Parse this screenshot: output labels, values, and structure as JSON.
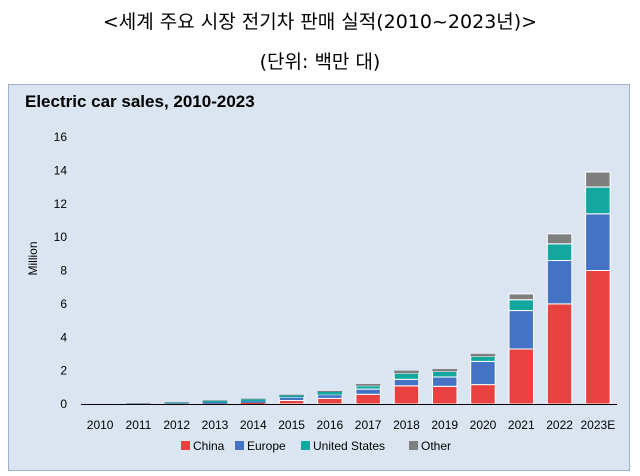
{
  "heading": {
    "title": "<세계 주요 시장 전기차 판매 실적(2010~2023년)>",
    "unit": "(단위: 백만 대)"
  },
  "colors": {
    "China": "#e8413f",
    "Europe": "#4472c4",
    "United States": "#12a8a0",
    "Other": "#7f7f7f",
    "background": "#dbe5f1"
  },
  "chart_data": {
    "type": "bar",
    "stacked": true,
    "title": "Electric car sales, 2010-2023",
    "xlabel": "",
    "ylabel": "Million",
    "ylim": [
      0,
      16
    ],
    "yticks": [
      0,
      2,
      4,
      6,
      8,
      10,
      12,
      14,
      16
    ],
    "grid": false,
    "legend_position": "bottom",
    "categories": [
      "2010",
      "2011",
      "2012",
      "2013",
      "2014",
      "2015",
      "2016",
      "2017",
      "2018",
      "2019",
      "2020",
      "2021",
      "2022",
      "2023E"
    ],
    "series": [
      {
        "name": "China",
        "values": [
          0.0,
          0.01,
          0.01,
          0.02,
          0.07,
          0.21,
          0.34,
          0.58,
          1.09,
          1.06,
          1.16,
          3.3,
          6.0,
          8.0
        ]
      },
      {
        "name": "Europe",
        "values": [
          0.0,
          0.01,
          0.03,
          0.07,
          0.1,
          0.19,
          0.22,
          0.31,
          0.39,
          0.56,
          1.39,
          2.3,
          2.6,
          3.4
        ]
      },
      {
        "name": "United States",
        "values": [
          0.0,
          0.02,
          0.05,
          0.1,
          0.12,
          0.11,
          0.16,
          0.2,
          0.36,
          0.33,
          0.3,
          0.65,
          1.0,
          1.6
        ]
      },
      {
        "name": "Other",
        "values": [
          0.0,
          0.01,
          0.02,
          0.03,
          0.03,
          0.04,
          0.06,
          0.11,
          0.16,
          0.15,
          0.15,
          0.35,
          0.6,
          0.9
        ]
      }
    ]
  }
}
